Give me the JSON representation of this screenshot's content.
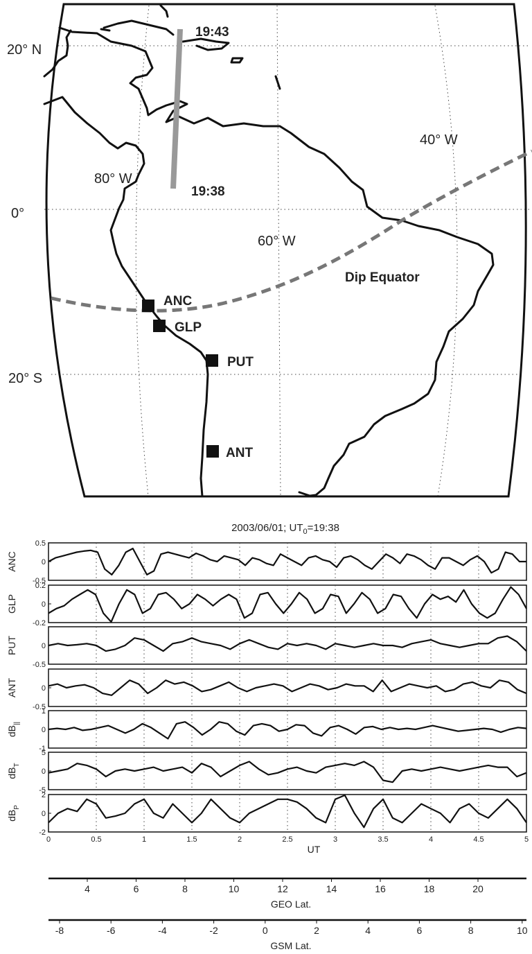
{
  "map": {
    "lat_labels": [
      "20° N",
      "0°",
      "20° S"
    ],
    "lon_labels": [
      "80° W",
      "60° W",
      "40° W"
    ],
    "track_times": [
      "19:43",
      "19:38"
    ],
    "dip_label": "Dip Equator",
    "stations": [
      "ANC",
      "GLP",
      "PUT",
      "ANT"
    ]
  },
  "figure_title": "2003/06/01;   UT0=19:38",
  "chart_data": {
    "type": "line",
    "x": {
      "label": "UT",
      "range": [
        0,
        5
      ],
      "ticks": [
        "0",
        "0.5",
        "1",
        "1.5",
        "2",
        "2.5",
        "3",
        "3.5",
        "4",
        "4.5",
        "5"
      ]
    },
    "panels": [
      {
        "name": "ANC",
        "ylim": [
          -0.5,
          0.5
        ],
        "yticks": [
          "0.5",
          "0",
          "-0.5"
        ],
        "values": [
          0.0,
          0.1,
          0.15,
          0.2,
          0.25,
          0.28,
          0.3,
          0.25,
          -0.2,
          -0.35,
          -0.1,
          0.25,
          0.35,
          0.0,
          -0.35,
          -0.25,
          0.2,
          0.25,
          0.2,
          0.15,
          0.1,
          0.22,
          0.15,
          0.05,
          0.0,
          0.15,
          0.1,
          0.05,
          -0.1,
          0.1,
          0.05,
          -0.05,
          -0.1,
          0.2,
          0.1,
          0.0,
          -0.1,
          0.1,
          0.15,
          0.05,
          0.0,
          -0.15,
          0.1,
          0.15,
          0.05,
          -0.1,
          -0.2,
          0.0,
          0.2,
          0.1,
          -0.05,
          0.2,
          0.15,
          0.05,
          -0.1,
          -0.2,
          0.1,
          0.1,
          0.0,
          -0.1,
          0.05,
          0.15,
          0.0,
          -0.3,
          -0.2,
          0.25,
          0.2,
          0.0,
          0.0
        ]
      },
      {
        "name": "GLP",
        "ylim": [
          -0.2,
          0.2
        ],
        "yticks": [
          "0.2",
          "0",
          "-0.2"
        ],
        "values": [
          -0.1,
          -0.05,
          -0.02,
          0.05,
          0.1,
          0.15,
          0.1,
          -0.1,
          -0.2,
          0.0,
          0.15,
          0.1,
          -0.1,
          -0.05,
          0.1,
          0.12,
          0.05,
          -0.05,
          0.0,
          0.1,
          0.05,
          -0.02,
          0.05,
          0.1,
          0.05,
          -0.15,
          -0.1,
          0.1,
          0.12,
          0.0,
          -0.1,
          0.0,
          0.12,
          0.05,
          -0.1,
          -0.05,
          0.1,
          0.08,
          -0.1,
          0.0,
          0.12,
          0.05,
          -0.1,
          -0.05,
          0.1,
          0.08,
          -0.05,
          -0.15,
          0.0,
          0.1,
          0.05,
          0.08,
          0.02,
          0.15,
          0.0,
          -0.1,
          -0.15,
          -0.1,
          0.05,
          0.18,
          0.1,
          -0.05
        ]
      },
      {
        "name": "PUT",
        "ylim": [
          -0.5,
          0.5
        ],
        "yticks": [
          "0",
          "-0.5"
        ],
        "values": [
          0.0,
          0.05,
          0.0,
          0.02,
          0.05,
          0.0,
          -0.15,
          -0.1,
          0.0,
          0.2,
          0.15,
          0.0,
          -0.15,
          0.05,
          0.1,
          0.2,
          0.1,
          0.05,
          0.0,
          -0.1,
          0.05,
          0.15,
          0.05,
          -0.05,
          -0.1,
          0.05,
          0.0,
          0.05,
          0.0,
          -0.1,
          0.05,
          0.0,
          -0.05,
          0.0,
          0.05,
          0.0,
          0.0,
          -0.05,
          0.05,
          0.1,
          0.15,
          0.05,
          0.0,
          -0.05,
          0.0,
          0.05,
          0.05,
          0.2,
          0.25,
          0.1,
          -0.15
        ]
      },
      {
        "name": "ANT",
        "ylim": [
          -0.5,
          0.5
        ],
        "yticks": [
          "0",
          "-0.5"
        ],
        "values": [
          0.05,
          0.1,
          0.0,
          0.05,
          0.08,
          0.0,
          -0.15,
          -0.2,
          0.0,
          0.2,
          0.1,
          -0.15,
          0.0,
          0.2,
          0.1,
          0.15,
          0.05,
          -0.1,
          -0.05,
          0.05,
          0.15,
          0.0,
          -0.1,
          0.0,
          0.05,
          0.1,
          0.05,
          -0.1,
          0.0,
          0.1,
          0.05,
          -0.05,
          0.0,
          0.1,
          0.05,
          0.05,
          -0.1,
          0.2,
          -0.1,
          0.0,
          0.1,
          0.05,
          0.0,
          0.05,
          -0.1,
          -0.05,
          0.1,
          0.15,
          0.05,
          0.0,
          0.2,
          0.15,
          -0.05,
          -0.15
        ]
      },
      {
        "name": "dB||",
        "ylim": [
          -1,
          1
        ],
        "yticks": [
          "1",
          "0",
          "-1"
        ],
        "values": [
          0.0,
          0.05,
          0.0,
          0.1,
          -0.05,
          0.0,
          0.1,
          0.2,
          0.0,
          -0.2,
          0.0,
          0.3,
          0.1,
          -0.2,
          -0.5,
          0.3,
          0.4,
          0.1,
          -0.3,
          0.0,
          0.4,
          0.3,
          -0.1,
          -0.3,
          0.2,
          0.3,
          0.2,
          -0.1,
          0.0,
          0.25,
          0.2,
          -0.2,
          -0.35,
          0.1,
          0.2,
          0.0,
          -0.25,
          0.1,
          0.15,
          0.0,
          0.1,
          0.0,
          0.05,
          0.0,
          0.1,
          0.2,
          0.1,
          0.0,
          -0.1,
          -0.05,
          0.0,
          0.05,
          0.0,
          -0.15,
          0.0,
          0.1,
          0.05
        ]
      },
      {
        "name": "dBT",
        "ylim": [
          -5,
          5
        ],
        "yticks": [
          "5",
          "0",
          "-5"
        ],
        "values": [
          -0.5,
          0.0,
          0.5,
          2.0,
          1.5,
          0.5,
          -1.5,
          0.0,
          0.5,
          0.0,
          0.5,
          1.0,
          0.0,
          0.5,
          1.0,
          -0.5,
          2.0,
          1.0,
          -1.5,
          0.0,
          1.5,
          2.5,
          0.5,
          -1.0,
          -0.5,
          0.5,
          1.0,
          0.0,
          -0.5,
          1.0,
          1.5,
          2.0,
          1.5,
          2.5,
          1.0,
          -2.5,
          -3.0,
          0.0,
          0.5,
          0.0,
          0.5,
          1.0,
          0.5,
          0.0,
          0.5,
          1.0,
          1.5,
          1.0,
          1.0,
          -1.5,
          -0.5
        ]
      },
      {
        "name": "dBP",
        "ylim": [
          -2,
          2
        ],
        "yticks": [
          "2",
          "0",
          "-2"
        ],
        "values": [
          -1.0,
          0.0,
          0.5,
          0.2,
          1.5,
          1.0,
          -0.5,
          -0.3,
          0.0,
          1.0,
          1.5,
          0.0,
          -0.5,
          1.0,
          0.0,
          -1.0,
          0.0,
          1.5,
          0.5,
          -0.5,
          -1.0,
          0.0,
          0.5,
          1.0,
          1.5,
          1.5,
          1.2,
          0.5,
          -0.5,
          -1.0,
          1.5,
          2.0,
          0.0,
          -1.5,
          0.5,
          1.5,
          -0.5,
          -1.0,
          0.0,
          1.0,
          0.5,
          0.0,
          -1.0,
          0.5,
          1.0,
          0.0,
          -0.5,
          0.5,
          1.5,
          0.5,
          -1.0
        ]
      }
    ],
    "geo_axis": {
      "label": "GEO Lat.",
      "ticks": [
        "4",
        "6",
        "8",
        "10",
        "12",
        "14",
        "16",
        "18",
        "20"
      ]
    },
    "gsm_axis": {
      "label": "GSM Lat.",
      "ticks": [
        "-8",
        "-6",
        "-4",
        "-2",
        "0",
        "2",
        "4",
        "6",
        "8",
        "10"
      ]
    }
  }
}
